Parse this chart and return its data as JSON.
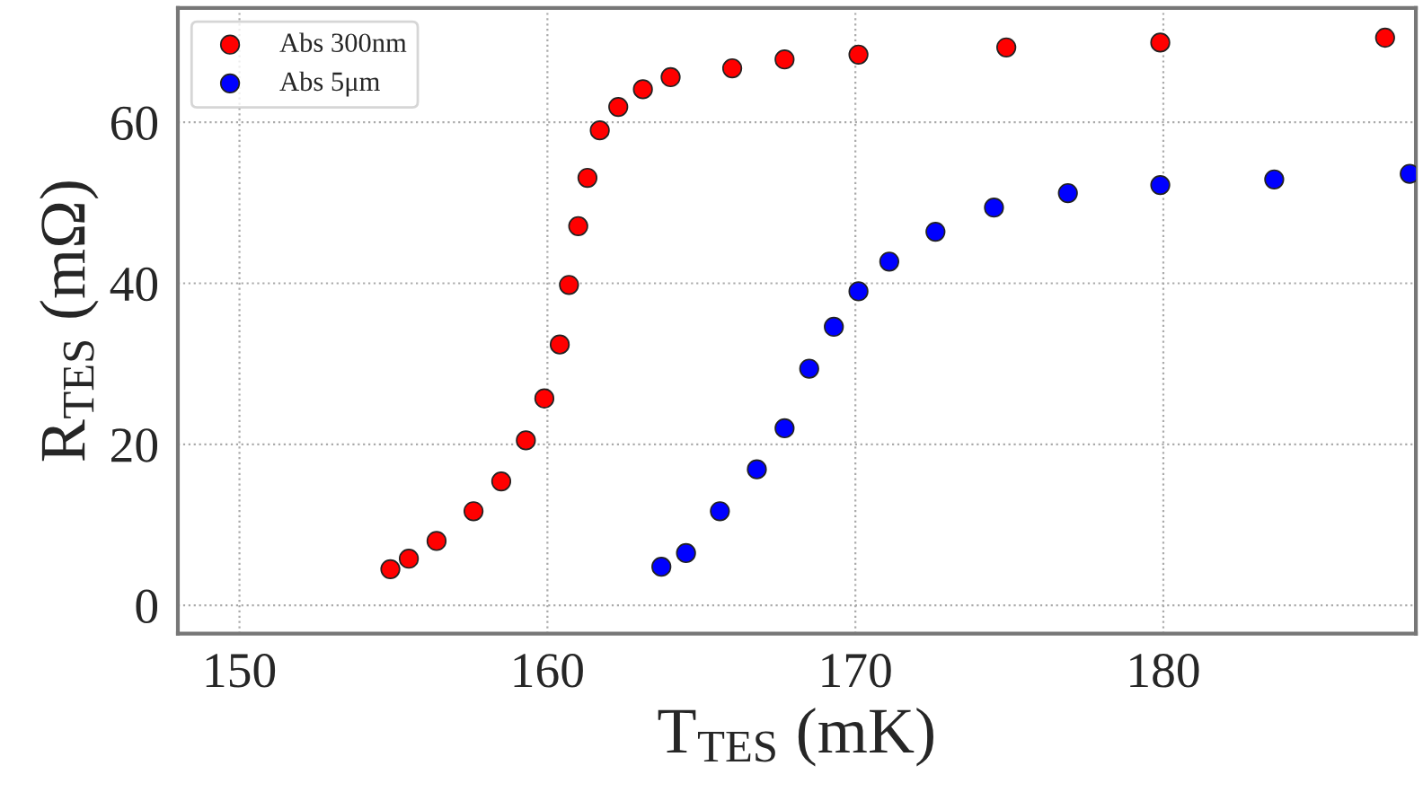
{
  "chart_data": {
    "type": "scatter",
    "xlabel": "T$_{TES}$ (mK)",
    "ylabel": "R$_{TES}$ (mΩ)",
    "xlim": [
      148,
      188.2
    ],
    "xticks": [
      150,
      160,
      170,
      180
    ],
    "ylim": [
      -3.5,
      74.2
    ],
    "yticks": [
      0,
      20,
      40,
      60
    ],
    "grid": true,
    "legend": "top left",
    "marker": "circle",
    "series": [
      {
        "name": "Abs 300nm",
        "color": "#ff0000",
        "x": [
          154.9,
          155.5,
          156.4,
          157.6,
          158.5,
          159.3,
          159.9,
          160.4,
          160.7,
          161.0,
          161.3,
          161.7,
          162.3,
          163.1,
          164.0,
          166.0,
          167.7,
          170.1,
          174.9,
          179.9,
          187.2
        ],
        "values": [
          4.5,
          5.8,
          8.0,
          11.7,
          15.4,
          20.5,
          25.7,
          32.4,
          39.8,
          47.1,
          53.1,
          59.0,
          61.9,
          64.1,
          65.6,
          66.7,
          67.8,
          68.4,
          69.3,
          69.9,
          70.5
        ]
      },
      {
        "name": "Abs 5μm",
        "color": "#0000ff",
        "x": [
          163.7,
          164.5,
          165.6,
          166.8,
          167.7,
          168.5,
          169.3,
          170.1,
          171.1,
          172.6,
          174.5,
          176.9,
          179.9,
          183.6,
          188.0
        ],
        "values": [
          4.8,
          6.5,
          11.7,
          16.9,
          22.0,
          29.4,
          34.6,
          39.0,
          42.7,
          46.4,
          49.4,
          51.2,
          52.2,
          52.9,
          53.6
        ]
      }
    ]
  }
}
